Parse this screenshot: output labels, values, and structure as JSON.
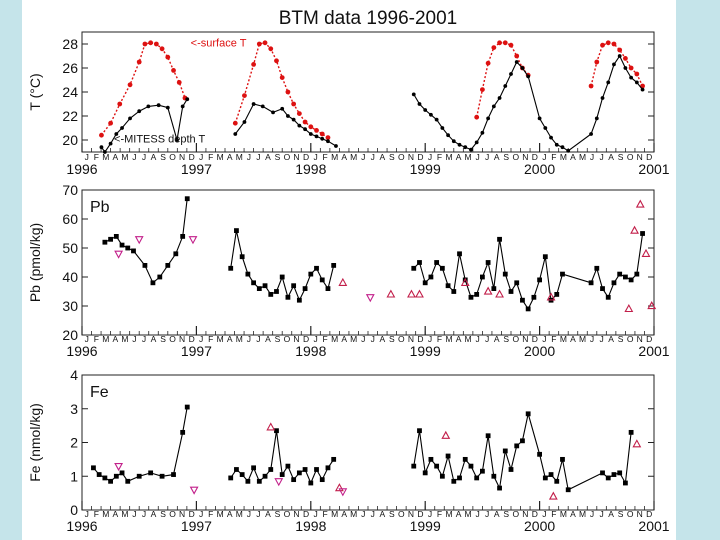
{
  "chart_data": [
    {
      "type": "scatter",
      "panel": "temperature",
      "title": "BTM data 1996-2001",
      "ylabel": "T (°C)",
      "ylim": [
        19,
        29
      ],
      "yticks": [
        20,
        22,
        24,
        26,
        28
      ],
      "xlim": [
        1996,
        2001
      ],
      "month_letters": [
        "J",
        "F",
        "M",
        "A",
        "M",
        "J",
        "J",
        "A",
        "S",
        "O",
        "N",
        "D"
      ],
      "year_labels": [
        "1996",
        "1997",
        "1998",
        "1999",
        "2000",
        "2001"
      ],
      "annotations": [
        "<-surface T",
        "<-MITESS depth T"
      ],
      "series": [
        {
          "name": "surface T",
          "color": "#dd1111",
          "style": "dotted",
          "x": [
            1996.17,
            1996.25,
            1996.33,
            1996.42,
            1996.5,
            1996.55,
            1996.6,
            1996.65,
            1996.7,
            1996.75,
            1996.8,
            1996.85,
            1996.9,
            1997.34,
            1997.42,
            1997.5,
            1997.55,
            1997.6,
            1997.65,
            1997.7,
            1997.75,
            1997.8,
            1997.85,
            1997.9,
            1997.95,
            1998.0,
            1998.05,
            1998.1,
            1998.15,
            1999.45,
            1999.5,
            1999.55,
            1999.6,
            1999.65,
            1999.7,
            1999.75,
            1999.8,
            1999.85,
            1999.9,
            2000.45,
            2000.5,
            2000.55,
            2000.6,
            2000.65,
            2000.7,
            2000.75,
            2000.8,
            2000.85,
            2000.9
          ],
          "y": [
            20.4,
            21.4,
            23.0,
            24.6,
            26.5,
            28.0,
            28.1,
            28.0,
            27.6,
            26.9,
            25.8,
            24.8,
            23.5,
            21.4,
            23.7,
            26.3,
            28.0,
            28.1,
            27.6,
            26.6,
            25.2,
            24.0,
            23.0,
            22.2,
            21.5,
            21.1,
            20.8,
            20.5,
            20.2,
            21.9,
            24.2,
            26.4,
            27.7,
            28.1,
            28.1,
            27.9,
            27.0,
            26.0,
            25.4,
            24.5,
            26.5,
            27.9,
            28.1,
            28.0,
            27.5,
            26.8,
            26.0,
            25.5,
            24.5
          ]
        },
        {
          "name": "MITESS depth T",
          "color": "#000000",
          "style": "solid",
          "x": [
            1996.17,
            1996.2,
            1996.25,
            1996.3,
            1996.35,
            1996.42,
            1996.5,
            1996.58,
            1996.67,
            1996.75,
            1996.83,
            1996.88,
            1996.92,
            1997.34,
            1997.42,
            1997.5,
            1997.58,
            1997.67,
            1997.75,
            1997.8,
            1997.85,
            1997.9,
            1997.95,
            1998.0,
            1998.05,
            1998.1,
            1998.15,
            1998.22,
            1998.9,
            1998.95,
            1999.0,
            1999.05,
            1999.1,
            1999.15,
            1999.2,
            1999.25,
            1999.3,
            1999.35,
            1999.4,
            1999.45,
            1999.5,
            1999.55,
            1999.6,
            1999.65,
            1999.7,
            1999.75,
            1999.8,
            1999.85,
            1999.9,
            2000.0,
            2000.05,
            2000.1,
            2000.15,
            2000.2,
            2000.25,
            2000.45,
            2000.5,
            2000.55,
            2000.6,
            2000.65,
            2000.7,
            2000.75,
            2000.8,
            2000.85,
            2000.9
          ],
          "y": [
            19.4,
            19.0,
            19.7,
            20.5,
            21.0,
            21.8,
            22.4,
            22.8,
            22.9,
            22.7,
            20.0,
            22.8,
            23.4,
            20.5,
            21.5,
            23.0,
            22.8,
            22.3,
            22.6,
            22.0,
            21.7,
            21.2,
            20.9,
            20.5,
            20.3,
            20.1,
            19.9,
            19.5,
            23.8,
            23.0,
            22.5,
            22.1,
            21.7,
            21.0,
            20.4,
            19.9,
            19.6,
            19.4,
            19.2,
            19.8,
            20.6,
            21.8,
            22.8,
            23.5,
            24.5,
            25.5,
            26.5,
            26.0,
            25.3,
            21.8,
            21.0,
            20.2,
            19.6,
            19.4,
            19.1,
            20.5,
            21.8,
            23.5,
            24.8,
            26.3,
            27.0,
            26.0,
            25.2,
            24.8,
            24.2
          ]
        }
      ]
    },
    {
      "type": "scatter",
      "panel": "lead",
      "title": "",
      "panel_label": "Pb",
      "ylabel": "Pb (pmol/kg)",
      "ylim": [
        20,
        70
      ],
      "yticks": [
        20,
        30,
        40,
        50,
        60,
        70
      ],
      "xlim": [
        1996,
        2001
      ],
      "month_letters": [
        "J",
        "F",
        "M",
        "A",
        "M",
        "J",
        "J",
        "A",
        "S",
        "O",
        "N",
        "D"
      ],
      "year_labels": [
        "1996",
        "1997",
        "1998",
        "1999",
        "2000",
        "2001"
      ],
      "series": [
        {
          "name": "MITESS",
          "color": "#000000",
          "marker": "square",
          "x": [
            1996.2,
            1996.25,
            1996.3,
            1996.35,
            1996.4,
            1996.45,
            1996.55,
            1996.62,
            1996.68,
            1996.75,
            1996.82,
            1996.88,
            1996.92,
            1997.3,
            1997.35,
            1997.4,
            1997.45,
            1997.5,
            1997.55,
            1997.6,
            1997.65,
            1997.7,
            1997.75,
            1997.8,
            1997.85,
            1997.9,
            1997.95,
            1998.0,
            1998.05,
            1998.1,
            1998.15,
            1998.2,
            1998.9,
            1998.95,
            1999.0,
            1999.05,
            1999.1,
            1999.15,
            1999.2,
            1999.25,
            1999.3,
            1999.35,
            1999.4,
            1999.45,
            1999.5,
            1999.55,
            1999.6,
            1999.65,
            1999.7,
            1999.75,
            1999.8,
            1999.85,
            1999.9,
            1999.95,
            2000.0,
            2000.05,
            2000.1,
            2000.15,
            2000.2,
            2000.45,
            2000.5,
            2000.55,
            2000.6,
            2000.65,
            2000.7,
            2000.75,
            2000.8,
            2000.85,
            2000.9
          ],
          "y": [
            52,
            53,
            54,
            51,
            50,
            49,
            44,
            38,
            40,
            44,
            48,
            54,
            67,
            43,
            56,
            47,
            41,
            38,
            36,
            37,
            34,
            35,
            40,
            33,
            37,
            32,
            36,
            41,
            43,
            39,
            36,
            44,
            43,
            45,
            38,
            40,
            45,
            43,
            37,
            35,
            48,
            39,
            33,
            34,
            40,
            45,
            36,
            53,
            41,
            35,
            38,
            32,
            29,
            33,
            39,
            47,
            32,
            34,
            41,
            38,
            43,
            36,
            33,
            38,
            41,
            40,
            39,
            41,
            55
          ]
        },
        {
          "name": "open triangle",
          "color": "#c21f4a",
          "marker": "triangle-up",
          "x": [
            1998.28,
            1998.7,
            1998.88,
            1998.95,
            1999.35,
            1999.55,
            1999.65,
            2000.1,
            2000.78,
            2000.83,
            2000.88,
            2000.93,
            2000.98
          ],
          "y": [
            38,
            34,
            34,
            34,
            38,
            35,
            34,
            33,
            29,
            56,
            65,
            48,
            30
          ]
        },
        {
          "name": "open inverted triangle",
          "color": "#c21f8a",
          "marker": "triangle-down",
          "x": [
            1996.32,
            1996.5,
            1996.97,
            1998.52
          ],
          "y": [
            48,
            53,
            53,
            33
          ]
        }
      ]
    },
    {
      "type": "scatter",
      "panel": "iron",
      "title": "",
      "panel_label": "Fe",
      "ylabel": "Fe (nmol/kg)",
      "ylim": [
        0,
        4
      ],
      "yticks": [
        0,
        1,
        2,
        3,
        4
      ],
      "xlim": [
        1996,
        2001
      ],
      "month_letters": [
        "J",
        "F",
        "M",
        "A",
        "M",
        "J",
        "J",
        "A",
        "S",
        "O",
        "N",
        "D"
      ],
      "year_labels": [
        "1996",
        "1997",
        "1998",
        "1999",
        "2000",
        "2001"
      ],
      "series": [
        {
          "name": "MITESS",
          "color": "#000000",
          "marker": "square",
          "x": [
            1996.1,
            1996.15,
            1996.2,
            1996.25,
            1996.3,
            1996.35,
            1996.4,
            1996.5,
            1996.6,
            1996.7,
            1996.8,
            1996.88,
            1996.92,
            1997.3,
            1997.35,
            1997.4,
            1997.45,
            1997.5,
            1997.55,
            1997.6,
            1997.65,
            1997.7,
            1997.75,
            1997.8,
            1997.85,
            1997.9,
            1997.95,
            1998.0,
            1998.05,
            1998.1,
            1998.15,
            1998.2,
            1998.9,
            1998.95,
            1999.0,
            1999.05,
            1999.1,
            1999.15,
            1999.2,
            1999.25,
            1999.3,
            1999.35,
            1999.4,
            1999.45,
            1999.5,
            1999.55,
            1999.6,
            1999.65,
            1999.7,
            1999.75,
            1999.8,
            1999.85,
            1999.9,
            2000.0,
            2000.05,
            2000.1,
            2000.15,
            2000.2,
            2000.25,
            2000.55,
            2000.6,
            2000.65,
            2000.7,
            2000.75,
            2000.8
          ],
          "y": [
            1.25,
            1.05,
            0.95,
            0.85,
            1.0,
            1.1,
            0.85,
            1.0,
            1.1,
            1.0,
            1.05,
            2.3,
            3.05,
            0.95,
            1.2,
            1.05,
            0.85,
            1.25,
            0.85,
            1.0,
            1.2,
            2.35,
            1.05,
            1.3,
            0.9,
            1.1,
            1.2,
            0.8,
            1.2,
            0.9,
            1.25,
            1.5,
            1.3,
            2.35,
            1.1,
            1.5,
            1.3,
            1.0,
            1.6,
            0.85,
            0.95,
            1.5,
            1.3,
            0.95,
            1.15,
            2.2,
            1.0,
            0.65,
            1.75,
            1.2,
            1.9,
            2.05,
            2.85,
            1.65,
            0.95,
            1.05,
            0.85,
            1.5,
            0.6,
            1.1,
            0.95,
            1.05,
            1.1,
            0.8,
            2.3
          ]
        },
        {
          "name": "open triangle",
          "color": "#c21f4a",
          "marker": "triangle-up",
          "x": [
            1997.65,
            1998.25,
            1999.18,
            2000.12,
            2000.85
          ],
          "y": [
            2.45,
            0.65,
            2.2,
            0.4,
            1.95
          ]
        },
        {
          "name": "open inverted triangle",
          "color": "#c21f8a",
          "marker": "triangle-down",
          "x": [
            1996.32,
            1996.98,
            1997.72,
            1998.28
          ],
          "y": [
            1.3,
            0.6,
            0.85,
            0.55
          ]
        }
      ]
    }
  ]
}
